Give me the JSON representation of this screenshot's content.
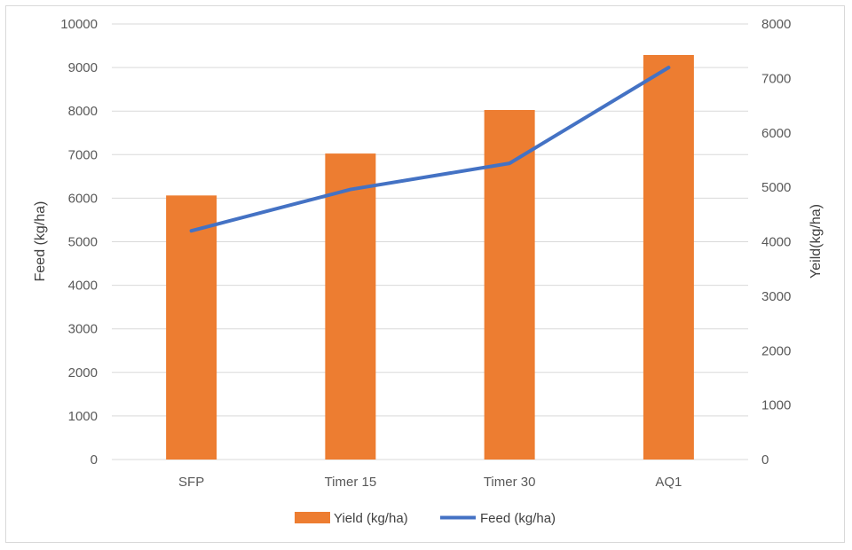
{
  "chart_data": {
    "type": "bar",
    "categories": [
      "SFP",
      "Timer 15",
      "Timer 30",
      "AQ1"
    ],
    "series": [
      {
        "name": "Yield (kg/ha)",
        "type": "bar",
        "axis": "right",
        "color": "#ED7D31",
        "values": [
          4850,
          5620,
          6420,
          7430
        ]
      },
      {
        "name": "Feed (kg/ha)",
        "type": "line",
        "axis": "left",
        "color": "#4472C4",
        "values": [
          5250,
          6200,
          6800,
          9000
        ]
      }
    ],
    "ylabel": "Feed (kg/ha)",
    "y2label": "Yeild(kg/ha)",
    "ylim": [
      0,
      10000
    ],
    "y2lim": [
      0,
      8000
    ],
    "yticks": [
      "0",
      "1000",
      "2000",
      "3000",
      "4000",
      "5000",
      "6000",
      "7000",
      "8000",
      "9000",
      "10000"
    ],
    "y2ticks": [
      "0",
      "1000",
      "2000",
      "3000",
      "4000",
      "5000",
      "6000",
      "7000",
      "8000"
    ],
    "grid": true,
    "legend": "bottom",
    "gridColor": "#d9d9d9"
  }
}
